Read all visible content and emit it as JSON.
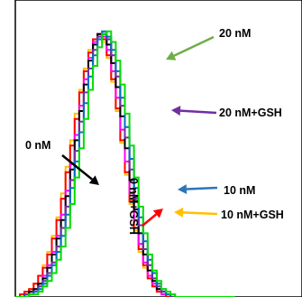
{
  "chart_data": {
    "type": "line",
    "x": [
      0,
      0.5,
      1,
      1.5,
      2,
      2.5,
      3,
      3.5,
      4,
      4.5,
      5,
      5.5,
      6,
      6.5,
      7,
      7.5,
      8,
      8.5,
      9,
      9.5,
      10,
      10.5,
      11,
      11.5,
      12,
      12.5,
      13,
      13.5,
      14,
      14.5,
      15,
      15.5,
      16,
      16.5,
      17,
      17.5,
      18,
      18.5,
      19,
      19.5,
      20,
      20.5,
      21,
      21.5,
      22,
      22.5,
      23,
      23.5,
      24
    ],
    "xlim": [
      0,
      24
    ],
    "ylim": [
      0,
      1.05
    ],
    "series": [
      {
        "color": "#ffc000",
        "values": [
          0.0,
          0.01,
          0.02,
          0.03,
          0.05,
          0.08,
          0.12,
          0.17,
          0.23,
          0.3,
          0.39,
          0.49,
          0.59,
          0.69,
          0.78,
          0.86,
          0.93,
          0.97,
          0.99,
          0.96,
          0.9,
          0.81,
          0.7,
          0.58,
          0.46,
          0.35,
          0.25,
          0.17,
          0.11,
          0.07,
          0.04,
          0.02,
          0.01,
          0.0,
          0.0,
          0.0,
          0.0,
          0.0,
          0.0,
          0.0,
          0.0,
          0.0,
          0.0,
          0.0,
          0.0,
          0.0,
          0.0,
          0.0,
          0.0
        ]
      },
      {
        "color": "#ff0000",
        "values": [
          0.0,
          0.01,
          0.02,
          0.03,
          0.05,
          0.08,
          0.11,
          0.16,
          0.22,
          0.29,
          0.37,
          0.47,
          0.57,
          0.67,
          0.77,
          0.85,
          0.92,
          0.97,
          0.99,
          0.97,
          0.91,
          0.82,
          0.71,
          0.59,
          0.47,
          0.36,
          0.26,
          0.18,
          0.12,
          0.07,
          0.04,
          0.02,
          0.01,
          0.0,
          0.0,
          0.0,
          0.0,
          0.0,
          0.0,
          0.0,
          0.0,
          0.0,
          0.0,
          0.0,
          0.0,
          0.0,
          0.0,
          0.0,
          0.0
        ]
      },
      {
        "color": "#ff00ff",
        "values": [
          0.0,
          0.0,
          0.01,
          0.02,
          0.03,
          0.05,
          0.08,
          0.12,
          0.17,
          0.23,
          0.31,
          0.4,
          0.5,
          0.61,
          0.72,
          0.82,
          0.9,
          0.96,
          0.99,
          0.98,
          0.93,
          0.85,
          0.75,
          0.63,
          0.51,
          0.39,
          0.29,
          0.2,
          0.13,
          0.08,
          0.05,
          0.03,
          0.01,
          0.01,
          0.0,
          0.0,
          0.0,
          0.0,
          0.0,
          0.0,
          0.0,
          0.0,
          0.0,
          0.0,
          0.0,
          0.0,
          0.0,
          0.0,
          0.0
        ]
      },
      {
        "color": "#000000",
        "values": [
          0.0,
          0.0,
          0.01,
          0.02,
          0.03,
          0.05,
          0.07,
          0.11,
          0.16,
          0.22,
          0.29,
          0.38,
          0.48,
          0.59,
          0.7,
          0.8,
          0.89,
          0.95,
          0.99,
          0.99,
          0.95,
          0.88,
          0.79,
          0.68,
          0.56,
          0.44,
          0.33,
          0.24,
          0.16,
          0.1,
          0.06,
          0.03,
          0.02,
          0.01,
          0.0,
          0.0,
          0.0,
          0.0,
          0.0,
          0.0,
          0.0,
          0.0,
          0.0,
          0.0,
          0.0,
          0.0,
          0.0,
          0.0,
          0.0
        ]
      },
      {
        "color": "#7030a0",
        "values": [
          0.0,
          0.0,
          0.01,
          0.01,
          0.02,
          0.04,
          0.06,
          0.09,
          0.13,
          0.19,
          0.26,
          0.34,
          0.44,
          0.55,
          0.66,
          0.77,
          0.86,
          0.93,
          0.98,
          0.99,
          0.97,
          0.91,
          0.83,
          0.72,
          0.6,
          0.48,
          0.37,
          0.27,
          0.18,
          0.12,
          0.07,
          0.04,
          0.02,
          0.01,
          0.0,
          0.0,
          0.0,
          0.0,
          0.0,
          0.0,
          0.0,
          0.0,
          0.0,
          0.0,
          0.0,
          0.0,
          0.0,
          0.0,
          0.0
        ]
      },
      {
        "color": "#0070c0",
        "values": [
          0.0,
          0.0,
          0.0,
          0.01,
          0.02,
          0.03,
          0.05,
          0.08,
          0.12,
          0.17,
          0.23,
          0.31,
          0.41,
          0.51,
          0.62,
          0.73,
          0.83,
          0.91,
          0.97,
          1.0,
          0.98,
          0.93,
          0.85,
          0.75,
          0.64,
          0.52,
          0.41,
          0.3,
          0.21,
          0.14,
          0.09,
          0.05,
          0.03,
          0.01,
          0.01,
          0.0,
          0.0,
          0.0,
          0.0,
          0.0,
          0.0,
          0.0,
          0.0,
          0.0,
          0.0,
          0.0,
          0.0,
          0.0,
          0.0
        ]
      },
      {
        "color": "#00dd00",
        "values": [
          0.0,
          0.0,
          0.0,
          0.01,
          0.01,
          0.02,
          0.04,
          0.06,
          0.09,
          0.14,
          0.19,
          0.26,
          0.35,
          0.45,
          0.56,
          0.67,
          0.78,
          0.87,
          0.94,
          0.99,
          1.0,
          0.96,
          0.89,
          0.8,
          0.69,
          0.57,
          0.45,
          0.34,
          0.24,
          0.16,
          0.1,
          0.06,
          0.03,
          0.02,
          0.01,
          0.0,
          0.0,
          0.0,
          0.0,
          0.0,
          0.0,
          0.0,
          0.0,
          0.0,
          0.0,
          0.0,
          0.0,
          0.0,
          0.0
        ]
      }
    ],
    "annotations": [
      {
        "text": "20 nM",
        "color": "#70ad47"
      },
      {
        "text": "20 nM+GSH",
        "color": "#7030a0"
      },
      {
        "text": "0 nM",
        "color": "#000000"
      },
      {
        "text": "10 nM",
        "color": "#2e75b6"
      },
      {
        "text": "10 nM+GSH",
        "color": "#ffc000"
      },
      {
        "text": "0 nM+GSH",
        "color": "#ff0000"
      }
    ],
    "grid": false,
    "legend": "none"
  }
}
